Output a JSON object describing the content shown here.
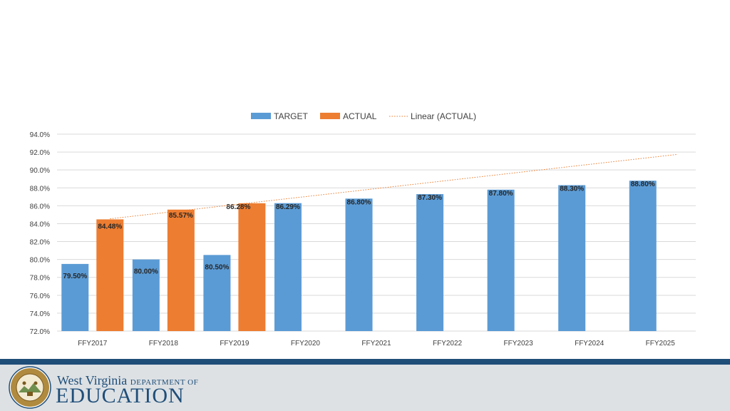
{
  "chart_data": {
    "type": "bar",
    "categories": [
      "FFY2017",
      "FFY2018",
      "FFY2019",
      "FFY2020",
      "FFY2021",
      "FFY2022",
      "FFY2023",
      "FFY2024",
      "FFY2025"
    ],
    "series": [
      {
        "name": "TARGET",
        "values": [
          79.5,
          80.0,
          80.5,
          86.29,
          86.8,
          87.3,
          87.8,
          88.3,
          88.8
        ],
        "labels": [
          "79.50%",
          "80.00%",
          "80.50%",
          "86.29%",
          "86.80%",
          "87.30%",
          "87.80%",
          "88.30%",
          "88.80%"
        ],
        "color": "#5b9bd5"
      },
      {
        "name": "ACTUAL",
        "values": [
          84.48,
          85.57,
          86.28,
          null,
          null,
          null,
          null,
          null,
          null
        ],
        "labels": [
          "84.48%",
          "85.57%",
          "86.28%",
          "",
          "",
          "",
          "",
          "",
          ""
        ],
        "color": "#ed7d31"
      }
    ],
    "trendline": {
      "name": "Linear (ACTUAL)",
      "of_series": "ACTUAL",
      "type": "linear",
      "color": "#ed7d31",
      "style": "dotted"
    },
    "ylim": [
      72,
      94
    ],
    "yticks": [
      "72.0%",
      "74.0%",
      "76.0%",
      "78.0%",
      "80.0%",
      "82.0%",
      "84.0%",
      "86.0%",
      "88.0%",
      "90.0%",
      "92.0%",
      "94.0%"
    ],
    "grid": true,
    "legend": "top-center"
  },
  "footer": {
    "org_line1": "West Virginia",
    "org_dept": "DEPARTMENT OF",
    "org_line2": "EDUCATION",
    "seal_icon": "state-seal-icon",
    "colors": {
      "brand": "#1f4e79",
      "band": "#dde1e4"
    }
  }
}
